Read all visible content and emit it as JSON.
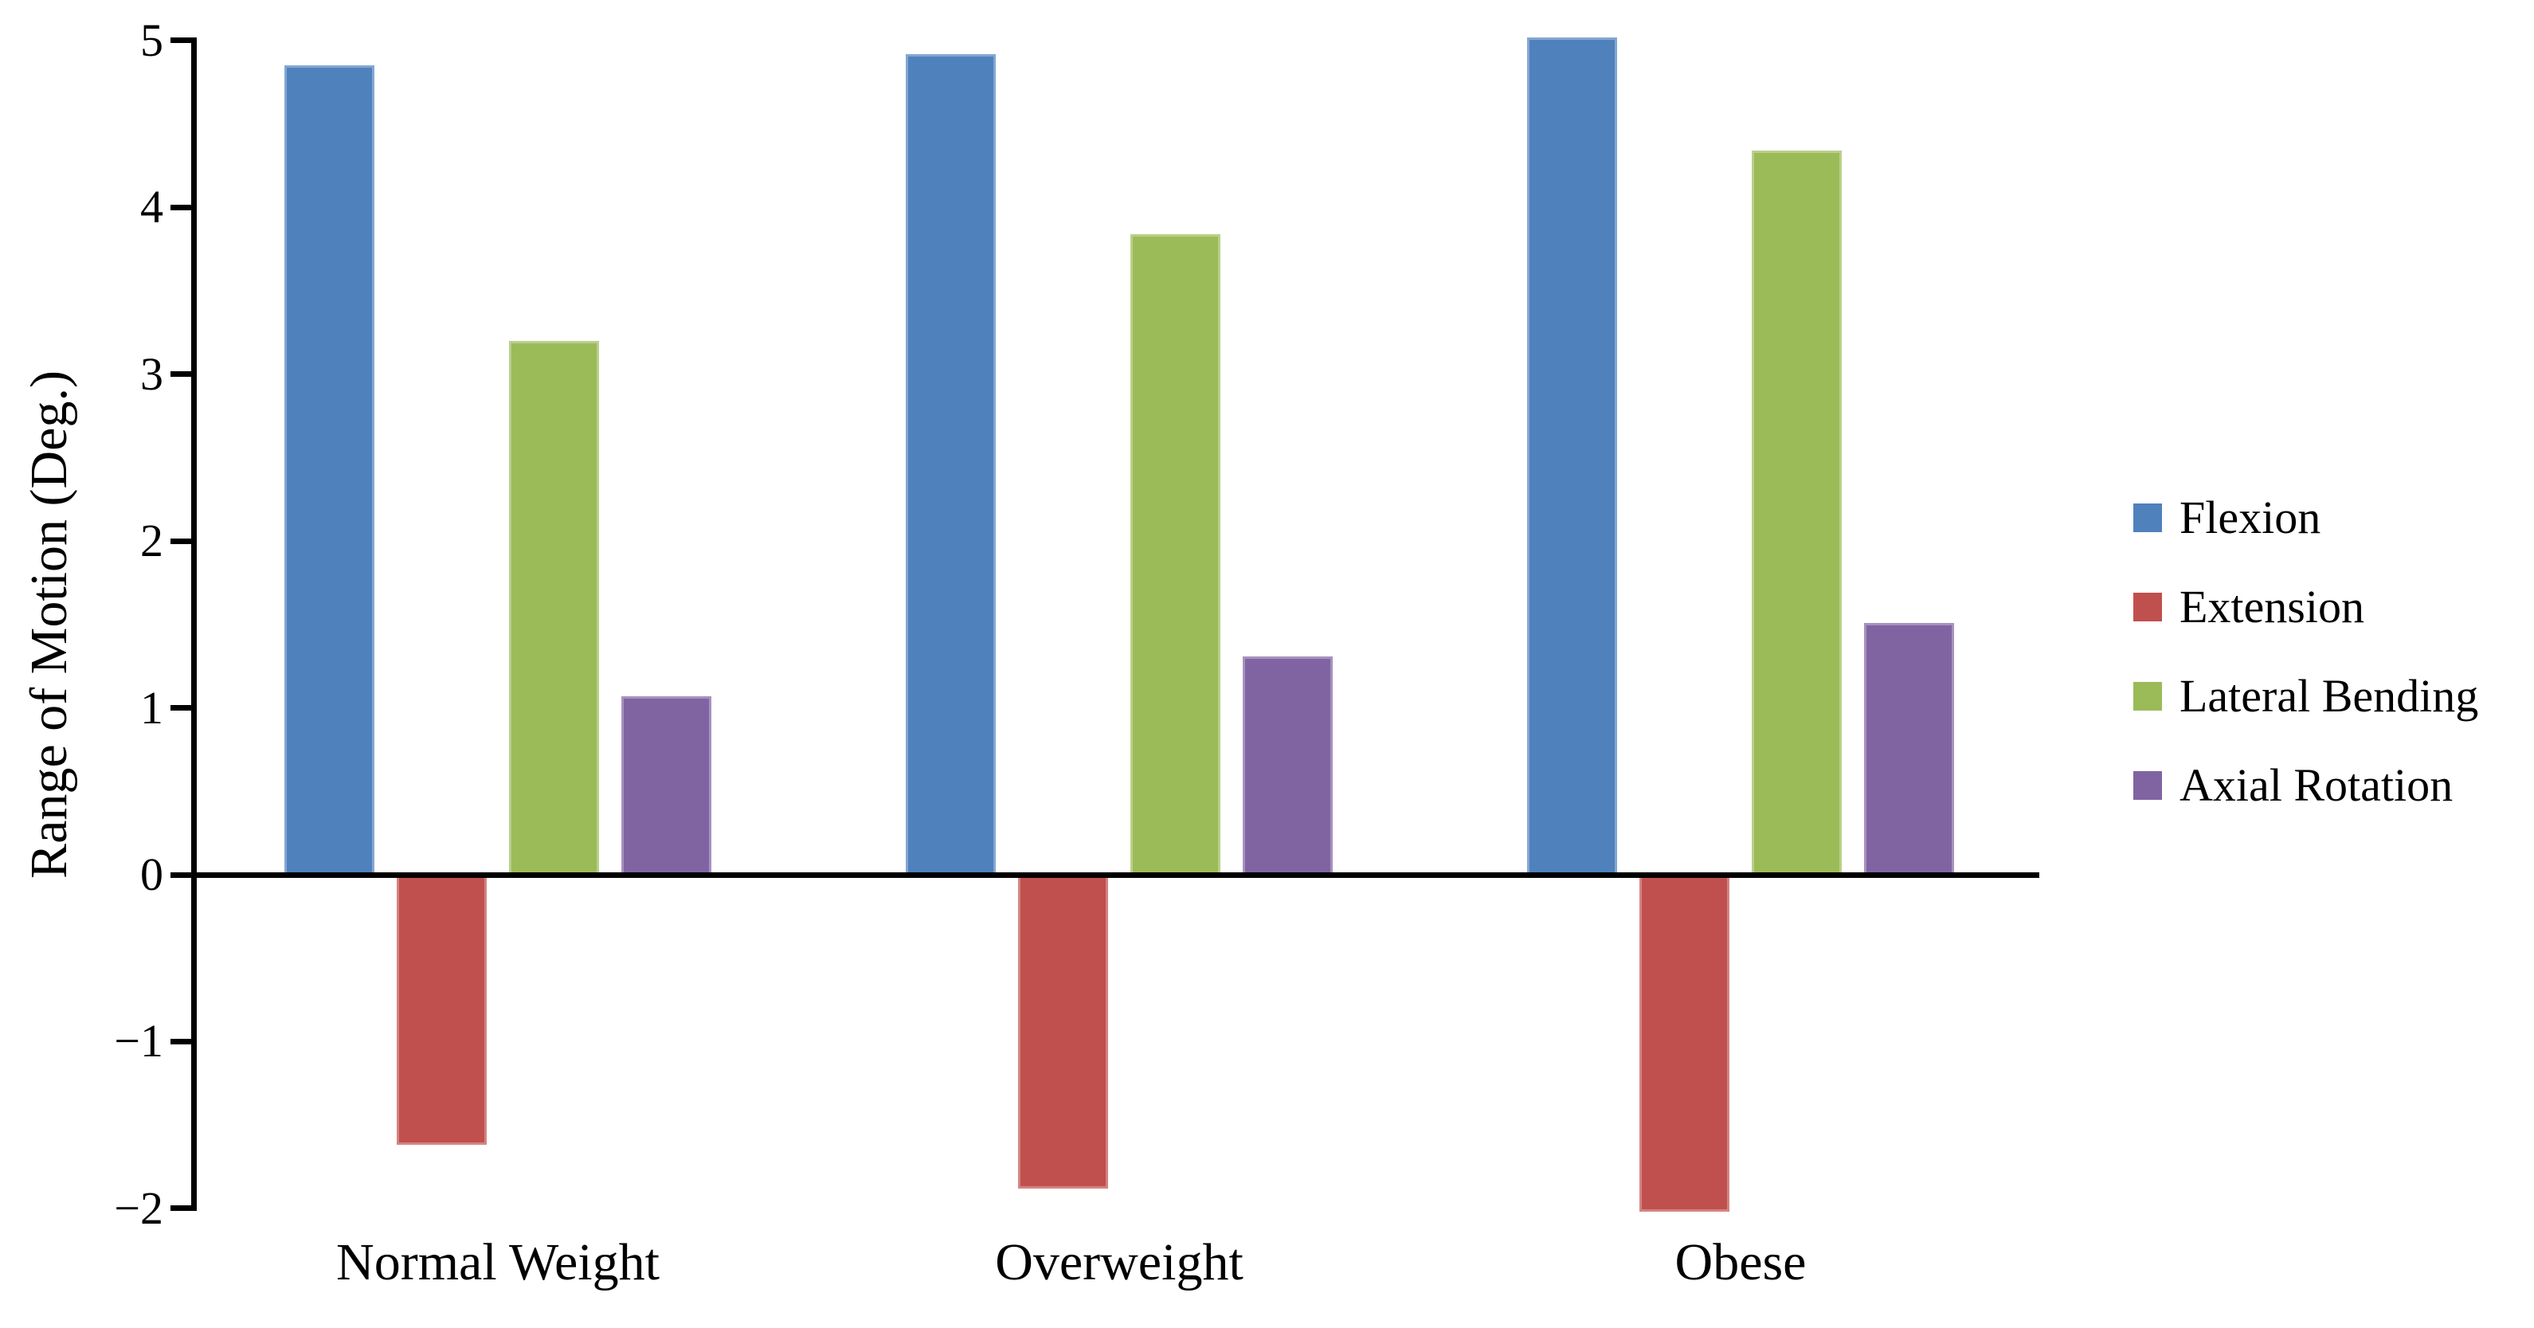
{
  "chart_data": {
    "type": "bar",
    "title": "",
    "ylabel": "Range of Motion (Deg.)",
    "xlabel": "",
    "ylim": [
      -2,
      5
    ],
    "yticks": [
      5,
      4,
      3,
      2,
      1,
      0,
      -1,
      -2
    ],
    "grid": false,
    "legend_position": "right",
    "axis_color": "#000000",
    "background_color": "#ffffff",
    "categories": [
      "Normal Weight",
      "Overweight",
      "Obese"
    ],
    "series": [
      {
        "name": "Flexion",
        "color": "#4F81BD",
        "values": [
          4.85,
          4.92,
          5.02
        ]
      },
      {
        "name": "Extension",
        "color": "#C0504D",
        "values": [
          -1.62,
          -1.88,
          -2.02
        ]
      },
      {
        "name": "Lateral Bending",
        "color": "#9BBB59",
        "values": [
          3.2,
          3.84,
          4.34
        ]
      },
      {
        "name": "Axial Rotation",
        "color": "#8064A2",
        "values": [
          1.07,
          1.31,
          1.51
        ]
      }
    ]
  }
}
